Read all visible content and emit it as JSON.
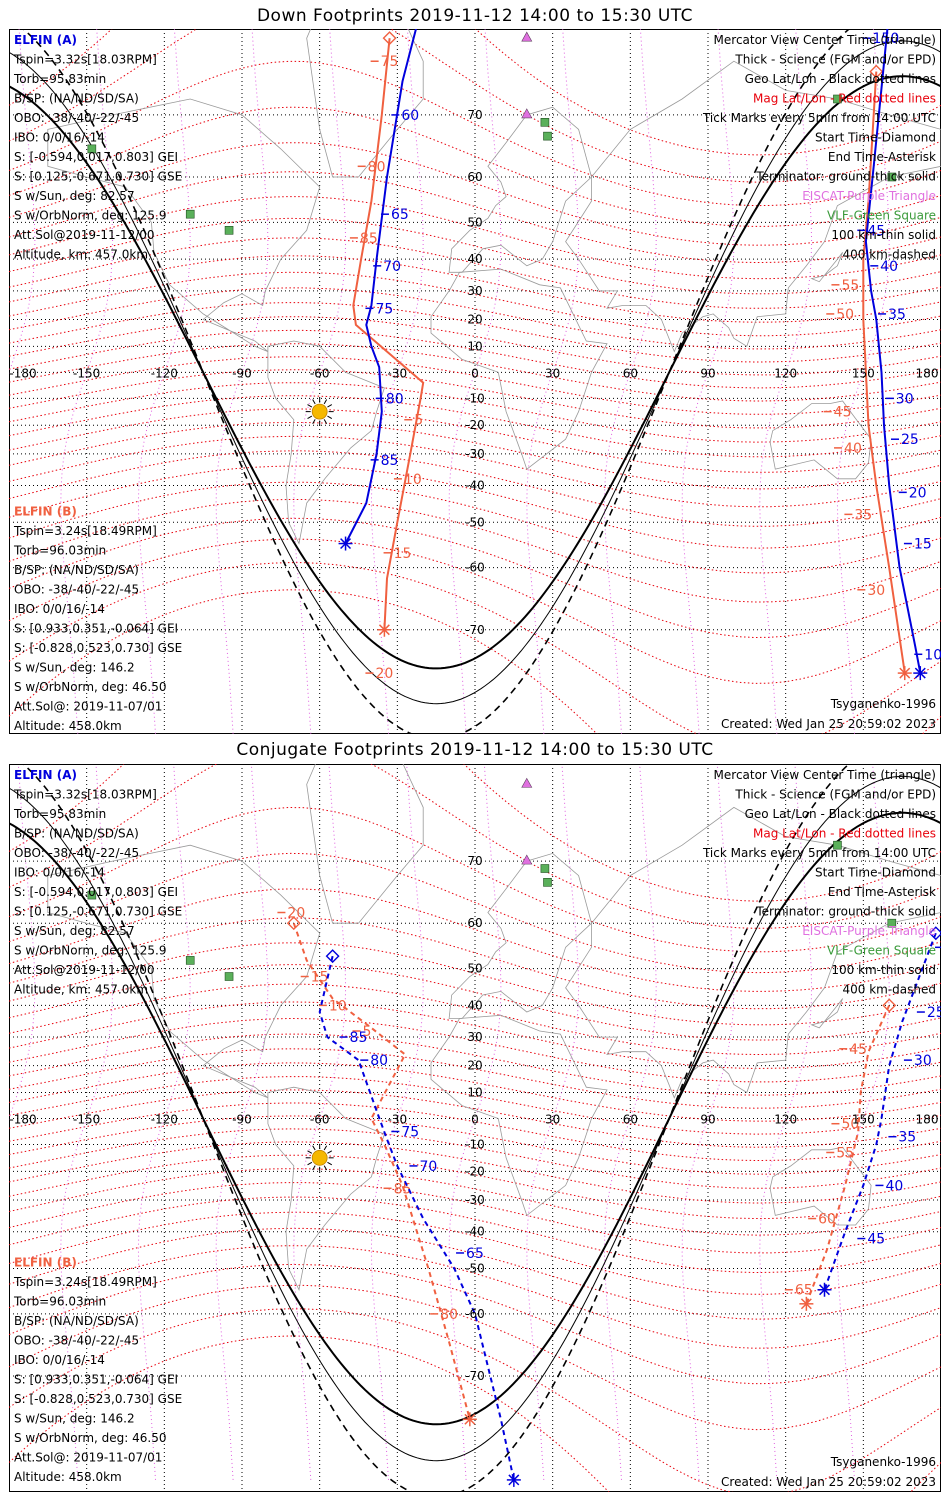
{
  "top": {
    "title": "Down Footprints 2019-11-12 14:00 to 15:30 UTC",
    "elfin_a": {
      "header": "ELFIN (A)",
      "lines": [
        "Tspin=3.32s[18.03RPM]",
        "Torb=95.83min",
        "B/SP: (NA/ND/SD/SA)",
        "OBO: -38/-40/-22/-45",
        "IBO: 0/0/16/-14",
        "S: [-0.594,0.017,0.803] GEI",
        "S: [0.125,-0.671,0.730] GSE",
        "S w/Sun, deg: 82.57",
        "S w/OrbNorm, deg: 125.9",
        "Att.Sol@2019-11-12/00",
        "Altitude, km: 457.0km"
      ]
    },
    "elfin_b": {
      "header": "ELFIN (B)",
      "lines": [
        "Tspin=3.24s[18.49RPM]",
        "Torb=96.03min",
        "B/SP: (NA/ND/SD/SA)",
        "OBO: -38/-40/-22/-45",
        "IBO: 0/0/16/-14",
        "S: [0.933,0.351,-0.064] GEI",
        "S: [-0.828,0.523,0.730] GSE",
        "S w/Sun, deg: 146.2",
        "S w/OrbNorm, deg: 46.50",
        "Att.Sol@: 2019-11-07/01",
        "Altitude: 458.0km"
      ]
    },
    "legend": [
      {
        "text": "Mercator View Center Time (triangle)",
        "color": "#000000"
      },
      {
        "text": "Thick - Science (FGM and/or EPD)",
        "color": "#000000"
      },
      {
        "text": "Geo Lat/Lon - Black dotted lines",
        "color": "#000000"
      },
      {
        "text": "Mag Lat/Lon - Red dotted lines",
        "color": "#e8000b"
      },
      {
        "text": "Tick Marks every 5min from 14:00 UTC",
        "color": "#000000"
      },
      {
        "text": "Start Time-Diamond",
        "color": "#000000"
      },
      {
        "text": "End Time-Asterisk",
        "color": "#000000"
      },
      {
        "text": "Terminator: ground-thick solid",
        "color": "#000000"
      },
      {
        "text": "EISCAT-Purple Triangle",
        "color": "#e070e0"
      },
      {
        "text": "VLF-Green Square",
        "color": "#3a9a3a"
      },
      {
        "text": "100 km-thin solid",
        "color": "#000000"
      },
      {
        "text": "400 km-dashed",
        "color": "#000000"
      }
    ],
    "model": "Tsyganenko-1996",
    "created": "Created: Wed Jan 25 20:59:02 2023"
  },
  "bottom": {
    "title": "Conjugate Footprints 2019-11-12 14:00 to 15:30 UTC",
    "elfin_a": {
      "header": "ELFIN (A)",
      "lines": [
        "Tspin=3.32s[18.03RPM]",
        "Torb=95.83min",
        "B/SP: (NA/ND/SD/SA)",
        "OBO: -38/-40/-22/-45",
        "IBO: 0/0/16/-14",
        "S: [-0.594,0.017,0.803] GEI",
        "S: [0.125,-0.671,0.730] GSE",
        "S w/Sun, deg: 82.57",
        "S w/OrbNorm, deg: 125.9",
        "Att.Sol@2019-11-12/00",
        "Altitude, km: 457.0km"
      ]
    },
    "elfin_b": {
      "header": "ELFIN (B)",
      "lines": [
        "Tspin=3.24s[18.49RPM]",
        "Torb=96.03min",
        "B/SP: (NA/ND/SD/SA)",
        "OBO: -38/-40/-22/-45",
        "IBO: 0/0/16/-14",
        "S: [0.933,0.351,-0.064] GEI",
        "S: [-0.828,0.523,0.730] GSE",
        "S w/Sun, deg: 146.2",
        "S w/OrbNorm, deg: 46.50",
        "Att.Sol@: 2019-11-07/01",
        "Altitude: 458.0km"
      ]
    },
    "legend": [
      {
        "text": "Mercator View Center Time (triangle)",
        "color": "#000000"
      },
      {
        "text": "Thick - Science (FGM and/or EPD)",
        "color": "#000000"
      },
      {
        "text": "Geo Lat/Lon - Black dotted lines",
        "color": "#000000"
      },
      {
        "text": "Mag Lat/Lon - Red dotted lines",
        "color": "#e8000b"
      },
      {
        "text": "Tick Marks every 5min from 14:00 UTC",
        "color": "#000000"
      },
      {
        "text": "Start Time-Diamond",
        "color": "#000000"
      },
      {
        "text": "End Time-Asterisk",
        "color": "#000000"
      },
      {
        "text": "Terminator: ground-thick solid",
        "color": "#000000"
      },
      {
        "text": "EISCAT-Purple Triangle",
        "color": "#e070e0"
      },
      {
        "text": "VLF-Green Square",
        "color": "#3a9a3a"
      },
      {
        "text": "100 km-thin solid",
        "color": "#000000"
      },
      {
        "text": "400 km-dashed",
        "color": "#000000"
      }
    ],
    "model": "Tsyganenko-1996",
    "created": "Created: Wed Jan 25 20:59:02 2023"
  },
  "map": {
    "lon_ticks": [
      "-180",
      "-150",
      "-120",
      "-90",
      "-60",
      "-30",
      "0",
      "30",
      "60",
      "90",
      "120",
      "150",
      "180"
    ],
    "lat_ticks": [
      "70",
      "60",
      "50",
      "40",
      "30",
      "20",
      "10",
      "0",
      "-10",
      "-20",
      "-30",
      "-40",
      "-50",
      "-60",
      "-70"
    ]
  },
  "colors": {
    "elfin_a": "#0000dd",
    "elfin_b": "#f06040",
    "mag_grid": "#e8000b",
    "geo_grid": "#000000",
    "eiscat": "#e070e0",
    "vlf": "#3a9a3a",
    "sun": "#f5b800"
  },
  "tracks": {
    "top": {
      "elfin_a": {
        "points": [
          [
            -21,
            80
          ],
          [
            -28,
            74
          ],
          [
            -34,
            60
          ],
          [
            -38,
            40
          ],
          [
            -40,
            25
          ],
          [
            -42,
            18
          ],
          [
            -40,
            10
          ],
          [
            -37,
            2
          ],
          [
            -36,
            -15
          ],
          [
            -38,
            -30
          ],
          [
            -42,
            -45
          ],
          [
            -50,
            -55
          ]
        ],
        "ticks": [
          {
            "label": "60",
            "lon": -30,
            "lat": 70
          },
          {
            "label": "65",
            "lon": -34,
            "lat": 52
          },
          {
            "label": "70",
            "lon": -37,
            "lat": 38
          },
          {
            "label": "75",
            "lon": -40,
            "lat": 24
          },
          {
            "label": "80",
            "lon": -36,
            "lat": -10
          },
          {
            "label": "85",
            "lon": -38,
            "lat": -32
          }
        ]
      },
      "elfin_b": {
        "points": [
          [
            -33,
            78
          ],
          [
            -36,
            70
          ],
          [
            -40,
            55
          ],
          [
            -44,
            40
          ],
          [
            -47,
            25
          ],
          [
            -46,
            18
          ],
          [
            -20,
            -4
          ],
          [
            -21,
            -10
          ],
          [
            -25,
            -30
          ],
          [
            -30,
            -50
          ],
          [
            -34,
            -62
          ],
          [
            -35,
            -70
          ]
        ],
        "ticks": [
          {
            "label": "75",
            "lon": -38,
            "lat": 76
          },
          {
            "label": "80",
            "lon": -43,
            "lat": 62
          },
          {
            "label": "85",
            "lon": -46,
            "lat": 46
          },
          {
            "label": "5",
            "lon": -25,
            "lat": -18
          },
          {
            "label": "10",
            "lon": -29,
            "lat": -38
          },
          {
            "label": "15",
            "lon": -33,
            "lat": -57
          },
          {
            "label": "20",
            "lon": -40,
            "lat": -75
          }
        ]
      },
      "elfin_a_east": {
        "points": [
          [
            160,
            80
          ],
          [
            154,
            62
          ],
          [
            151,
            45
          ],
          [
            153,
            30
          ],
          [
            155,
            20
          ],
          [
            157,
            0
          ],
          [
            158,
            -20
          ],
          [
            160,
            -40
          ],
          [
            164,
            -60
          ],
          [
            170,
            -72
          ],
          [
            172,
            -75
          ]
        ],
        "ticks": [
          {
            "label": "150",
            "lon": 152,
            "lat": 78
          },
          {
            "label": "45",
            "lon": 150,
            "lat": 48
          },
          {
            "label": "40",
            "lon": 155,
            "lat": 38
          },
          {
            "label": "35",
            "lon": 158,
            "lat": 22
          },
          {
            "label": "30",
            "lon": 161,
            "lat": -10
          },
          {
            "label": "25",
            "lon": 163,
            "lat": -25
          },
          {
            "label": "20",
            "lon": 166,
            "lat": -42
          },
          {
            "label": "15",
            "lon": 168,
            "lat": -55
          },
          {
            "label": "10",
            "lon": 172,
            "lat": -73
          }
        ]
      },
      "elfin_b_east": {
        "points": [
          [
            155,
            75
          ],
          [
            152,
            55
          ],
          [
            150,
            40
          ],
          [
            150,
            20
          ],
          [
            151,
            0
          ],
          [
            152,
            -20
          ],
          [
            155,
            -40
          ],
          [
            160,
            -60
          ],
          [
            166,
            -75
          ]
        ],
        "ticks": [
          {
            "label": "55",
            "lon": 140,
            "lat": 32
          },
          {
            "label": "50",
            "lon": 138,
            "lat": 22
          },
          {
            "label": "45",
            "lon": 137,
            "lat": -15
          },
          {
            "label": "40",
            "lon": 141,
            "lat": -28
          },
          {
            "label": "35",
            "lon": 145,
            "lat": -48
          },
          {
            "label": "30",
            "lon": 150,
            "lat": -64
          }
        ]
      }
    },
    "bottom": {
      "elfin_a": {
        "points": [
          [
            -55,
            53
          ],
          [
            -60,
            38
          ],
          [
            -57,
            30
          ],
          [
            -45,
            22
          ],
          [
            -38,
            3
          ],
          [
            -34,
            -8
          ],
          [
            -30,
            -18
          ],
          [
            -20,
            -36
          ],
          [
            -8,
            -50
          ],
          [
            0,
            -60
          ],
          [
            10,
            -75
          ],
          [
            15,
            -80
          ]
        ],
        "ticks": [
          {
            "label": "85",
            "lon": -50,
            "lat": 30
          },
          {
            "label": "80",
            "lon": -42,
            "lat": 22
          },
          {
            "label": "75",
            "lon": -30,
            "lat": -5
          },
          {
            "label": "70",
            "lon": -23,
            "lat": -18
          },
          {
            "label": "65",
            "lon": -5,
            "lat": -46
          }
        ]
      },
      "elfin_b": {
        "points": [
          [
            -70,
            60
          ],
          [
            -65,
            52
          ],
          [
            -55,
            42
          ],
          [
            -40,
            33
          ],
          [
            -27,
            24
          ],
          [
            -40,
            0
          ],
          [
            -35,
            -10
          ],
          [
            -28,
            -25
          ],
          [
            -18,
            -50
          ],
          [
            -10,
            -65
          ],
          [
            -2,
            -75
          ]
        ],
        "ticks": [
          {
            "label": "20",
            "lon": -74,
            "lat": 62
          },
          {
            "label": "15",
            "lon": -65,
            "lat": 48
          },
          {
            "label": "10",
            "lon": -58,
            "lat": 40
          },
          {
            "label": "5",
            "lon": -45,
            "lat": 32
          },
          {
            "label": "85",
            "lon": -33,
            "lat": -26
          },
          {
            "label": "80",
            "lon": -15,
            "lat": -60
          }
        ]
      },
      "elfin_a_east": {
        "points": [
          [
            178,
            58
          ],
          [
            170,
            45
          ],
          [
            165,
            35
          ],
          [
            160,
            20
          ],
          [
            157,
            0
          ],
          [
            155,
            -10
          ],
          [
            150,
            -25
          ],
          [
            143,
            -40
          ],
          [
            135,
            -55
          ]
        ],
        "ticks": [
          {
            "label": "20",
            "lon": 180,
            "lat": 55
          },
          {
            "label": "25",
            "lon": 173,
            "lat": 38
          },
          {
            "label": "30",
            "lon": 168,
            "lat": 22
          },
          {
            "label": "35",
            "lon": 162,
            "lat": -7
          },
          {
            "label": "40",
            "lon": 157,
            "lat": -25
          },
          {
            "label": "45",
            "lon": 150,
            "lat": -42
          }
        ]
      },
      "elfin_b_east": {
        "points": [
          [
            160,
            40
          ],
          [
            152,
            25
          ],
          [
            149,
            10
          ],
          [
            148,
            -5
          ],
          [
            143,
            -25
          ],
          [
            136,
            -45
          ],
          [
            128,
            -58
          ]
        ],
        "ticks": [
          {
            "label": "45",
            "lon": 143,
            "lat": 26
          },
          {
            "label": "50",
            "lon": 140,
            "lat": -2
          },
          {
            "label": "55",
            "lon": 138,
            "lat": -13
          },
          {
            "label": "60",
            "lon": 131,
            "lat": -36
          },
          {
            "label": "65",
            "lon": 122,
            "lat": -55
          }
        ]
      }
    }
  }
}
